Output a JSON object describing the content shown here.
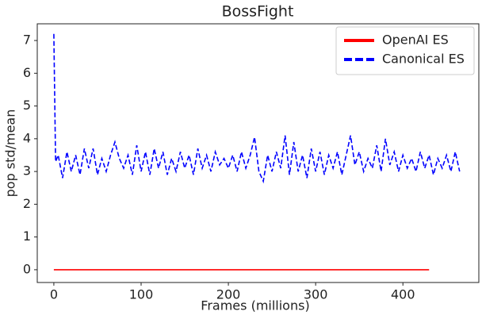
{
  "chart_data": {
    "type": "line",
    "title": "BossFight",
    "xlabel": "Frames (millions)",
    "ylabel": "pop std/mean",
    "xlim": [
      -19,
      487
    ],
    "ylim": [
      -0.39,
      7.51
    ],
    "xticks": [
      0,
      100,
      200,
      300,
      400
    ],
    "yticks": [
      0,
      1,
      2,
      3,
      4,
      5,
      6,
      7
    ],
    "grid": false,
    "legend": "upper right",
    "series": [
      {
        "name": "OpenAI ES",
        "color": "#ff0000",
        "linestyle": "solid",
        "x": [
          0,
          430
        ],
        "values": [
          0,
          0
        ]
      },
      {
        "name": "Canonical ES",
        "color": "#0000ff",
        "linestyle": "dashed",
        "x": [
          0,
          2,
          5,
          10,
          15,
          20,
          25,
          30,
          35,
          40,
          45,
          50,
          55,
          60,
          65,
          70,
          75,
          80,
          85,
          90,
          95,
          100,
          105,
          110,
          115,
          120,
          125,
          130,
          135,
          140,
          145,
          150,
          155,
          160,
          165,
          170,
          175,
          180,
          185,
          190,
          195,
          200,
          205,
          210,
          215,
          220,
          225,
          230,
          235,
          240,
          245,
          250,
          255,
          260,
          265,
          270,
          275,
          280,
          285,
          290,
          295,
          300,
          305,
          310,
          315,
          320,
          325,
          330,
          335,
          340,
          345,
          350,
          355,
          360,
          365,
          370,
          375,
          380,
          385,
          390,
          395,
          400,
          405,
          410,
          415,
          420,
          425,
          430,
          435,
          440,
          445,
          450,
          455,
          460,
          465
        ],
        "values": [
          7.2,
          3.3,
          3.5,
          2.8,
          3.6,
          3.0,
          3.5,
          2.9,
          3.7,
          3.1,
          3.7,
          2.9,
          3.4,
          3.0,
          3.5,
          3.9,
          3.4,
          3.1,
          3.5,
          2.9,
          3.8,
          3.0,
          3.6,
          2.9,
          3.7,
          3.1,
          3.6,
          2.9,
          3.4,
          3.0,
          3.6,
          3.1,
          3.5,
          2.9,
          3.7,
          3.1,
          3.5,
          3.0,
          3.6,
          3.2,
          3.4,
          3.1,
          3.5,
          3.0,
          3.6,
          3.1,
          3.5,
          4.05,
          3.0,
          2.7,
          3.5,
          3.0,
          3.6,
          3.1,
          4.1,
          2.9,
          3.9,
          3.0,
          3.5,
          2.8,
          3.7,
          3.0,
          3.6,
          2.9,
          3.5,
          3.1,
          3.6,
          2.9,
          3.5,
          4.1,
          3.2,
          3.6,
          3.0,
          3.4,
          3.1,
          3.8,
          3.0,
          4.0,
          3.2,
          3.6,
          3.0,
          3.5,
          3.1,
          3.4,
          3.0,
          3.6,
          3.1,
          3.5,
          2.9,
          3.4,
          3.1,
          3.5,
          3.0,
          3.6,
          3.0
        ]
      }
    ]
  }
}
